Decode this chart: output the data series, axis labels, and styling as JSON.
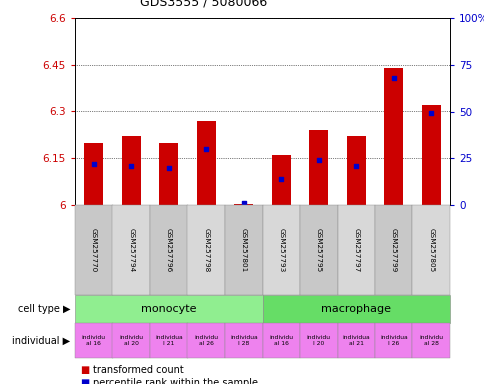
{
  "title": "GDS3555 / 5080066",
  "samples": [
    "GSM257770",
    "GSM257794",
    "GSM257796",
    "GSM257798",
    "GSM257801",
    "GSM257793",
    "GSM257795",
    "GSM257797",
    "GSM257799",
    "GSM257805"
  ],
  "transformed_count": [
    6.2,
    6.22,
    6.2,
    6.27,
    6.003,
    6.16,
    6.24,
    6.22,
    6.44,
    6.32
  ],
  "percentile_rank": [
    22,
    21,
    20,
    30,
    1,
    14,
    24,
    21,
    68,
    49
  ],
  "ylim_left": [
    6.0,
    6.6
  ],
  "ylim_right": [
    0,
    100
  ],
  "yticks_left": [
    6.0,
    6.15,
    6.3,
    6.45,
    6.6
  ],
  "ytick_labels_left": [
    "6",
    "6.15",
    "6.3",
    "6.45",
    "6.6"
  ],
  "yticks_right": [
    0,
    25,
    50,
    75,
    100
  ],
  "ytick_labels_right": [
    "0",
    "25",
    "50",
    "75",
    "100%"
  ],
  "cell_type_groups": [
    {
      "label": "monocyte",
      "start": 0,
      "end": 5,
      "color": "#90ee90"
    },
    {
      "label": "macrophage",
      "start": 5,
      "end": 10,
      "color": "#66dd66"
    }
  ],
  "individual_labels": [
    "individu\nal 16",
    "individu\nal 20",
    "individua\nl 21",
    "individu\nal 26",
    "individua\nl 28",
    "individu\nal 16",
    "individu\nl 20",
    "individua\nal 21",
    "individua\nl 26",
    "individu\nal 28"
  ],
  "bar_color": "#cc0000",
  "blue_color": "#0000cc",
  "bar_width": 0.5,
  "base_value": 6.0,
  "tick_color_left": "#cc0000",
  "tick_color_right": "#0000cc",
  "legend_red_label": "transformed count",
  "legend_blue_label": "percentile rank within the sample",
  "sample_col_colors": [
    "#c8c8c8",
    "#d8d8d8",
    "#c8c8c8",
    "#d8d8d8",
    "#c8c8c8",
    "#d8d8d8",
    "#c8c8c8",
    "#d8d8d8",
    "#c8c8c8",
    "#d8d8d8"
  ]
}
